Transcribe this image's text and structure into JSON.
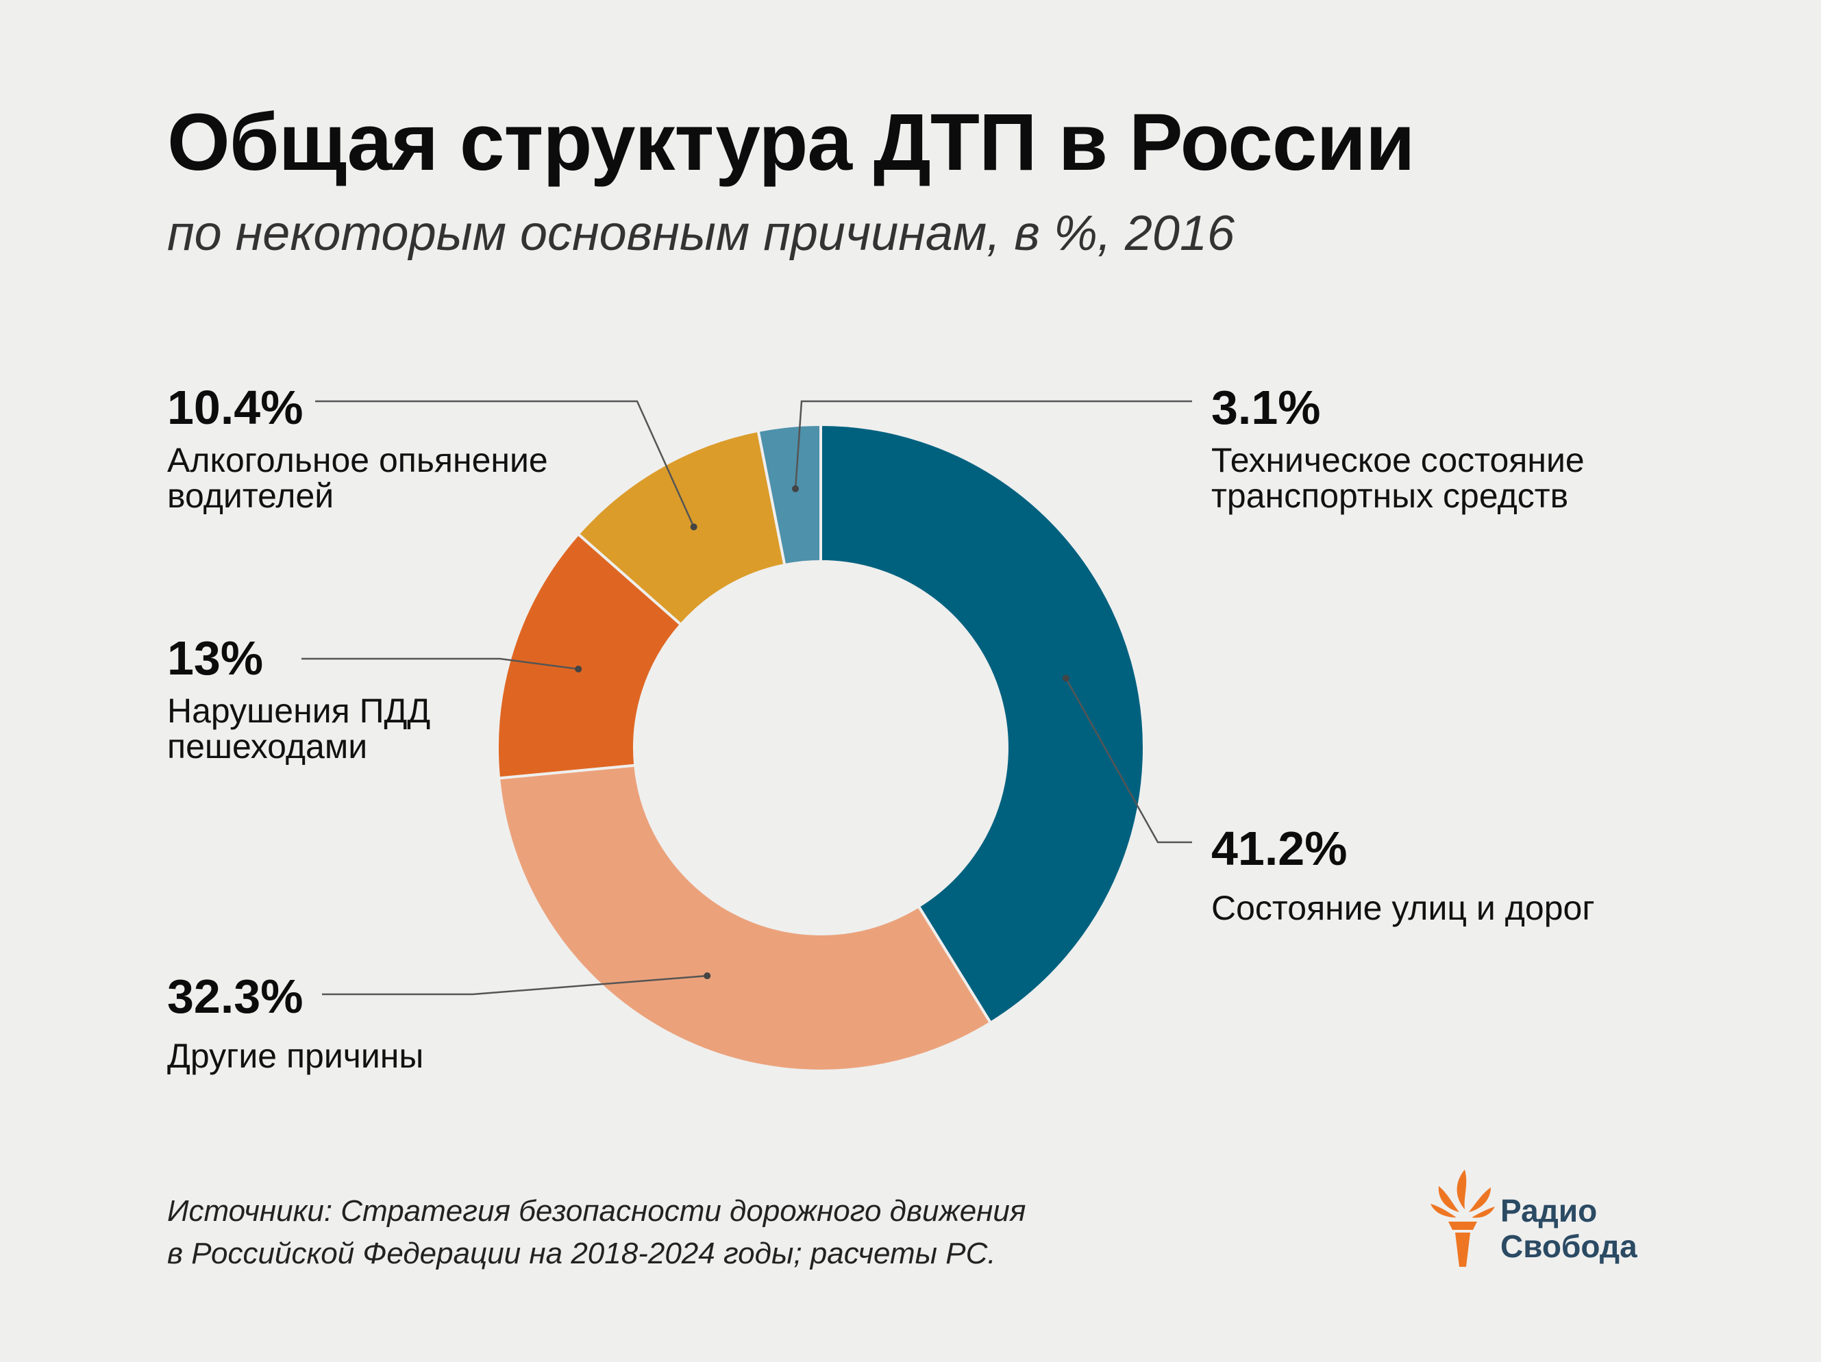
{
  "title": "Общая структура ДТП в России",
  "subtitle": "по некоторым основным причинам, в %, 2016",
  "chart_data": {
    "type": "pie",
    "donut": true,
    "series": [
      {
        "name": "Состояние улиц и дорог",
        "value": 41.2,
        "label": "41.2%",
        "color": "#00617f"
      },
      {
        "name": "Другие причины",
        "value": 32.3,
        "label": "32.3%",
        "color": "#eba27b"
      },
      {
        "name": "Нарушения ПДД пешеходами",
        "value": 13,
        "label": "13%",
        "color": "#df6622"
      },
      {
        "name": "Алкогольное опьянение водителей",
        "value": 10.4,
        "label": "10.4%",
        "color": "#db9c2a"
      },
      {
        "name": "Техническое состояние транспортных средств",
        "value": 3.1,
        "label": "3.1%",
        "color": "#4e91ab"
      }
    ]
  },
  "labels": {
    "roads": {
      "pct": "41.2%",
      "text": "Состояние улиц и дорог"
    },
    "other": {
      "pct": "32.3%",
      "text": "Другие причины"
    },
    "pedestrians": {
      "pct": "13%",
      "line1": "Нарушения ПДД",
      "line2": "пешеходами"
    },
    "alcohol": {
      "pct": "10.4%",
      "line1": "Алкогольное опьянение",
      "line2": "водителей"
    },
    "technical": {
      "pct": "3.1%",
      "line1": "Техническое состояние",
      "line2": "транспортных средств"
    }
  },
  "source": {
    "line1": "Источники: Стратегия безопасности дорожного движения",
    "line2": "в Российской Федерации на 2018-2024 годы; расчеты РС."
  },
  "logo": {
    "line1": "Радио",
    "line2": "Свобода",
    "text_color": "#2b4a63",
    "icon_color": "#ee7623"
  }
}
